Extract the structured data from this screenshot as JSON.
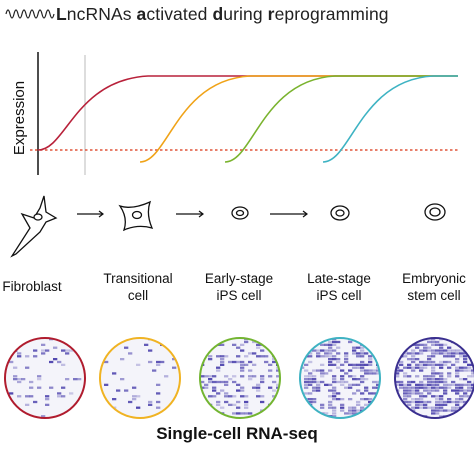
{
  "title": {
    "segments": [
      {
        "text": "L",
        "bold": true
      },
      {
        "text": "ncRNAs ",
        "bold": false
      },
      {
        "text": "a",
        "bold": true
      },
      {
        "text": "ctivated ",
        "bold": false
      },
      {
        "text": "d",
        "bold": true
      },
      {
        "text": "uring ",
        "bold": false
      },
      {
        "text": "r",
        "bold": true
      },
      {
        "text": "eprogramming",
        "bold": false
      }
    ],
    "icon": "squiggle-rna-icon"
  },
  "chart": {
    "ylabel": "Expression",
    "threshold_color": "#e0553a",
    "curves": [
      {
        "stage": "Fibroblast",
        "color": "#b8213a"
      },
      {
        "stage": "Transitional cell",
        "color": "#f0a318"
      },
      {
        "stage": "Early-stage iPS cell",
        "color": "#7ab32e"
      },
      {
        "stage": "Late-stage iPS cell",
        "color": "#3eb3c3"
      }
    ]
  },
  "stages": [
    {
      "label_line1": "Fibroblast",
      "label_line2": "",
      "icon": "fibroblast-cell-icon",
      "ring_color": "#b01c2e",
      "density": 0.08
    },
    {
      "label_line1": "Transitional",
      "label_line2": "cell",
      "icon": "transitional-cell-icon",
      "ring_color": "#f0b323",
      "density": 0.06
    },
    {
      "label_line1": "Early-stage",
      "label_line2": "iPS cell",
      "icon": "early-ips-cell-icon",
      "ring_color": "#73b531",
      "density": 0.18
    },
    {
      "label_line1": "Late-stage",
      "label_line2": "iPS cell",
      "icon": "late-ips-cell-icon",
      "ring_color": "#3eb2c2",
      "density": 0.42
    },
    {
      "label_line1": "Embryonic",
      "label_line2": "stem cell",
      "icon": "embryonic-stem-cell-icon",
      "ring_color": "#3a2f8f",
      "density": 0.55
    }
  ],
  "footer": "Single-cell RNA-seq"
}
